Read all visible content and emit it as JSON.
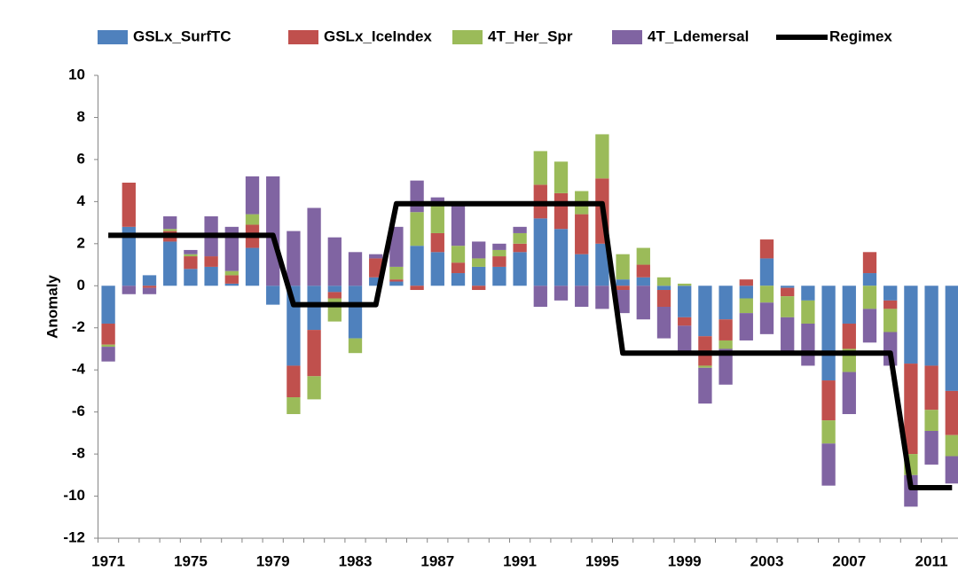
{
  "chart_data": {
    "type": "bar",
    "stacked": true,
    "y_label": "Anomaly",
    "categories": [
      "1971",
      null,
      null,
      null,
      "1975",
      null,
      null,
      null,
      "1979",
      null,
      null,
      null,
      "1983",
      null,
      null,
      null,
      "1987",
      null,
      null,
      null,
      "1991",
      null,
      null,
      null,
      "1995",
      null,
      null,
      null,
      "1999",
      null,
      null,
      null,
      "2003",
      null,
      null,
      null,
      "2007",
      null,
      null,
      null,
      "2011",
      null
    ],
    "ylim": [
      -12,
      10
    ],
    "yticks": [
      -12,
      -10,
      -8,
      -6,
      -4,
      -2,
      0,
      2,
      4,
      6,
      8,
      10
    ],
    "legend": "top",
    "series": [
      {
        "name": "GSLx_SurfTC",
        "color": "#4f81bd",
        "values": [
          -1.8,
          2.8,
          0.5,
          2.1,
          0.8,
          0.9,
          0.1,
          1.8,
          -0.9,
          -3.8,
          -2.1,
          -0.3,
          -2.5,
          0.4,
          0.2,
          1.9,
          1.6,
          0.6,
          0.9,
          0.9,
          1.6,
          3.2,
          2.7,
          1.5,
          2.0,
          0.3,
          0.4,
          -0.2,
          -1.5,
          -2.4,
          -1.6,
          -0.6,
          1.3,
          -0.1,
          -0.7,
          -4.5,
          -1.8,
          0.6,
          -0.7,
          -3.7,
          -3.8,
          -5.0
        ]
      },
      {
        "name": "GSLx_IceIndex",
        "color": "#c0504d",
        "values": [
          -1.0,
          2.1,
          -0.1,
          0.5,
          0.6,
          0.5,
          0.4,
          1.1,
          0,
          -1.5,
          -2.2,
          -0.3,
          0,
          0.9,
          0.1,
          -0.2,
          0.9,
          0.5,
          -0.2,
          0.5,
          0.4,
          1.6,
          1.7,
          1.9,
          3.1,
          -0.2,
          0.6,
          -0.8,
          -0.4,
          -1.4,
          -1.0,
          0.3,
          0.9,
          -0.4,
          0,
          -1.9,
          -1.2,
          1.0,
          -0.4,
          -4.3,
          -2.1,
          -2.1
        ]
      },
      {
        "name": "4T_Her_Spr",
        "color": "#9bbb59",
        "values": [
          -0.1,
          0,
          0,
          0.1,
          0.1,
          0,
          0.2,
          0.5,
          0,
          -0.8,
          -1.1,
          -1.1,
          -0.7,
          0,
          0.6,
          1.6,
          1.3,
          0.8,
          0.4,
          0.3,
          0.5,
          1.6,
          1.5,
          1.1,
          2.1,
          1.2,
          0.8,
          0.4,
          0.1,
          -0.1,
          -0.4,
          -0.7,
          -0.8,
          -1.0,
          -1.1,
          -1.1,
          -1.1,
          -1.1,
          -1.1,
          -1.0,
          -1.0,
          -1.0
        ]
      },
      {
        "name": "4T_Ldemersal",
        "color": "#8064a2",
        "values": [
          -0.7,
          -0.4,
          -0.3,
          0.6,
          0.2,
          1.9,
          2.1,
          1.8,
          5.2,
          2.6,
          3.7,
          2.3,
          1.6,
          0.2,
          1.9,
          1.5,
          0.4,
          1.9,
          0.8,
          0.3,
          0.3,
          -1.0,
          -0.7,
          -1.0,
          -1.1,
          -1.1,
          -1.6,
          -1.5,
          -1.2,
          -1.7,
          -1.7,
          -1.3,
          -1.5,
          -1.8,
          -2.0,
          -2.0,
          -2.0,
          -1.6,
          -1.6,
          -1.5,
          -1.6,
          -1.3
        ]
      },
      {
        "name": "Regimex",
        "type": "line",
        "color": "#000000",
        "values": [
          2.4,
          2.4,
          2.4,
          2.4,
          2.4,
          2.4,
          2.4,
          2.4,
          2.4,
          -0.9,
          -0.9,
          -0.9,
          -0.9,
          -0.9,
          3.9,
          3.9,
          3.9,
          3.9,
          3.9,
          3.9,
          3.9,
          3.9,
          3.9,
          3.9,
          3.9,
          -3.2,
          -3.2,
          -3.2,
          -3.2,
          -3.2,
          -3.2,
          -3.2,
          -3.2,
          -3.2,
          -3.2,
          -3.2,
          -3.2,
          -3.2,
          -3.2,
          -9.6,
          -9.6,
          -9.6
        ]
      }
    ]
  }
}
